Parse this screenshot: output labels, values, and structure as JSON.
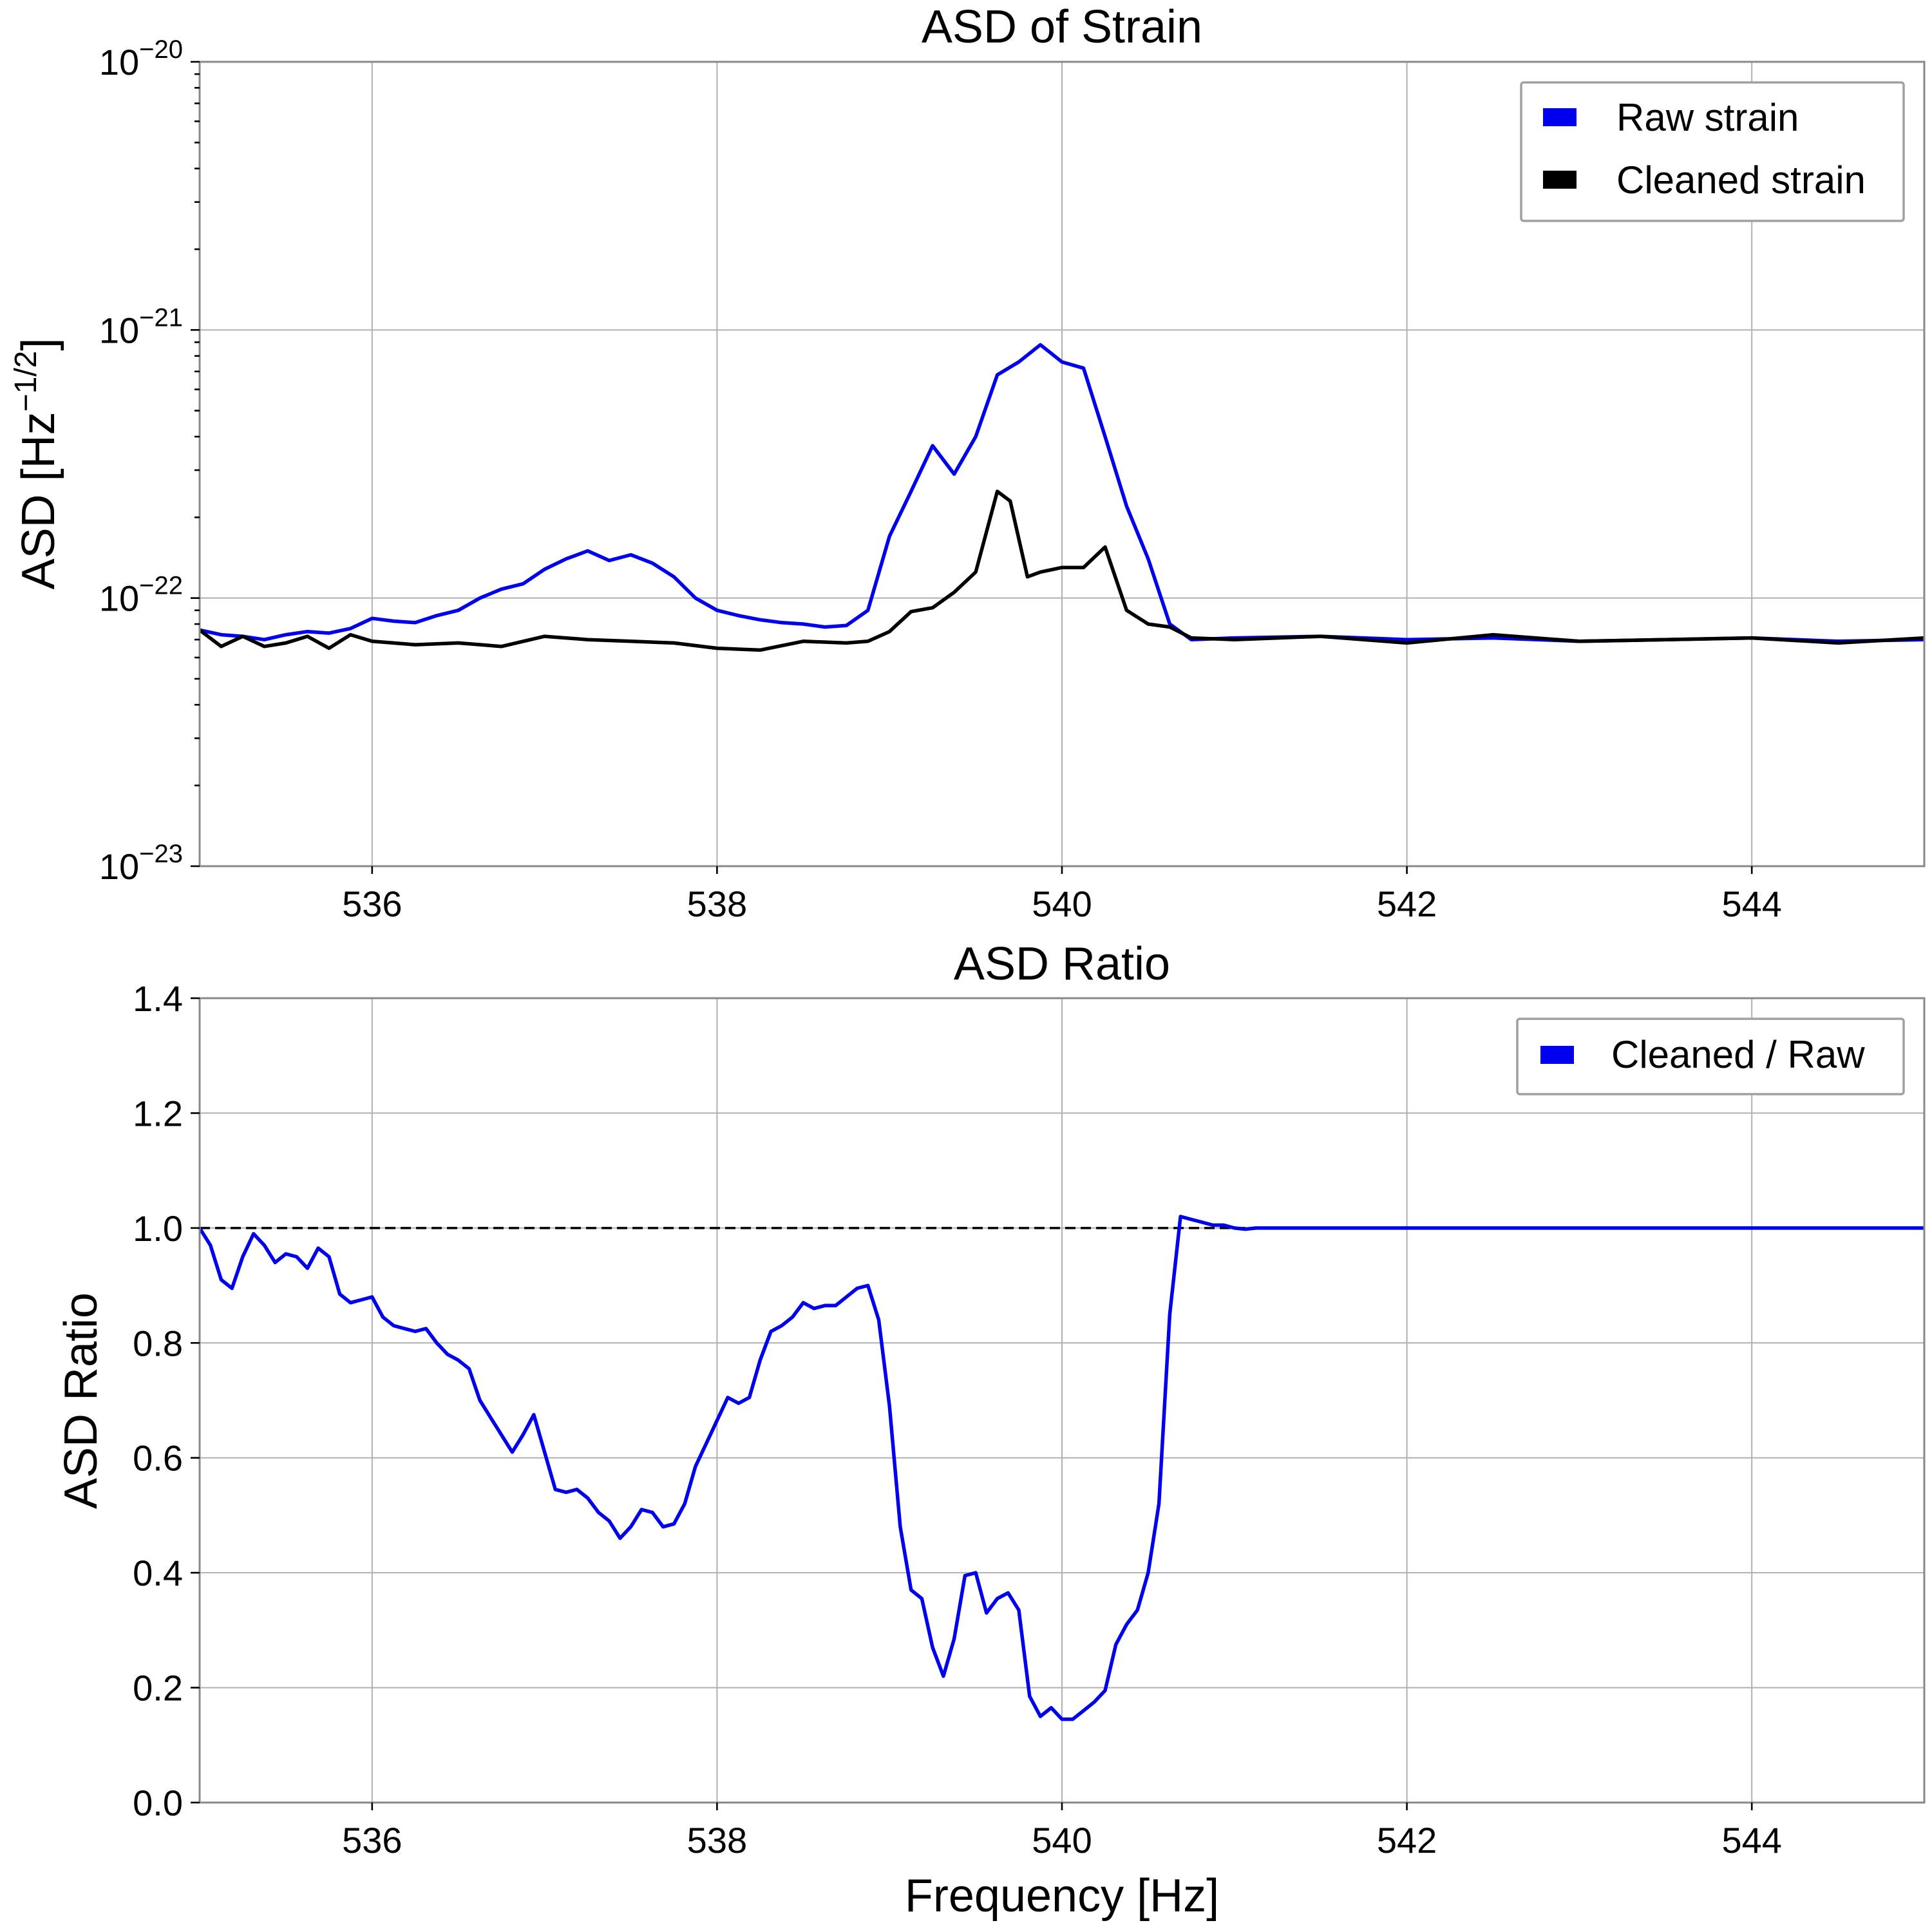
{
  "colors": {
    "raw": "#0000ee",
    "cleaned": "#000000",
    "ratio": "#0000ee",
    "reference": "#000000"
  },
  "chart_data": [
    {
      "type": "line",
      "title": "ASD of Strain",
      "xlabel": "",
      "ylabel": "ASD [Hz−1/2]",
      "yscale": "log",
      "xlim": [
        535,
        545
      ],
      "ylim": [
        1e-23,
        1e-20
      ],
      "xticks": [
        "536",
        "538",
        "540",
        "542",
        "544"
      ],
      "yticks": [
        {
          "base": "10",
          "exp": "−20"
        },
        {
          "base": "10",
          "exp": "−21"
        },
        {
          "base": "10",
          "exp": "−22"
        },
        {
          "base": "10",
          "exp": "−23"
        }
      ],
      "grid": true,
      "legend_placement": "top-right",
      "series": [
        {
          "name": "Raw strain",
          "x": [
            535.0,
            535.125,
            535.25,
            535.375,
            535.5,
            535.625,
            535.75,
            535.875,
            536.0,
            536.125,
            536.25,
            536.375,
            536.5,
            536.625,
            536.75,
            536.875,
            537.0,
            537.125,
            537.25,
            537.375,
            537.5,
            537.625,
            537.75,
            537.875,
            538.0,
            538.125,
            538.25,
            538.375,
            538.5,
            538.625,
            538.75,
            538.875,
            539.0,
            539.125,
            539.25,
            539.375,
            539.5,
            539.625,
            539.75,
            539.875,
            540.0,
            540.125,
            540.25,
            540.375,
            540.5,
            540.625,
            540.75,
            541.0,
            541.5,
            542.0,
            542.5,
            543.0,
            543.5,
            544.0,
            544.5,
            545.0
          ],
          "y": [
            7.6e-23,
            7.3e-23,
            7.2e-23,
            7e-23,
            7.3e-23,
            7.5e-23,
            7.4e-23,
            7.7e-23,
            8.4e-23,
            8.2e-23,
            8.1e-23,
            8.6e-23,
            9e-23,
            1e-22,
            1.08e-22,
            1.13e-22,
            1.28e-22,
            1.4e-22,
            1.5e-22,
            1.38e-22,
            1.45e-22,
            1.35e-22,
            1.2e-22,
            1e-22,
            9e-23,
            8.6e-23,
            8.3e-23,
            8.1e-23,
            8e-23,
            7.8e-23,
            7.9e-23,
            9e-23,
            1.7e-22,
            2.5e-22,
            3.7e-22,
            2.9e-22,
            4e-22,
            6.8e-22,
            7.6e-22,
            8.8e-22,
            7.6e-22,
            7.2e-22,
            4e-22,
            2.2e-22,
            1.4e-22,
            8e-23,
            7e-23,
            7.1e-23,
            7.2e-23,
            7e-23,
            7.1e-23,
            6.9e-23,
            7e-23,
            7.1e-23,
            6.9e-23,
            7e-23
          ]
        },
        {
          "name": "Cleaned strain",
          "x": [
            535.0,
            535.125,
            535.25,
            535.375,
            535.5,
            535.625,
            535.75,
            535.875,
            536.0,
            536.25,
            536.5,
            536.75,
            537.0,
            537.25,
            537.5,
            537.75,
            538.0,
            538.25,
            538.5,
            538.75,
            538.875,
            539.0,
            539.125,
            539.25,
            539.375,
            539.5,
            539.625,
            539.7,
            539.8,
            539.875,
            540.0,
            540.125,
            540.25,
            540.375,
            540.5,
            540.625,
            540.75,
            541.0,
            541.5,
            542.0,
            542.5,
            543.0,
            543.5,
            544.0,
            544.5,
            545.0
          ],
          "y": [
            7.6e-23,
            6.6e-23,
            7.2e-23,
            6.6e-23,
            6.8e-23,
            7.2e-23,
            6.5e-23,
            7.3e-23,
            6.9e-23,
            6.7e-23,
            6.8e-23,
            6.6e-23,
            7.2e-23,
            7e-23,
            6.9e-23,
            6.8e-23,
            6.5e-23,
            6.4e-23,
            6.9e-23,
            6.8e-23,
            6.9e-23,
            7.5e-23,
            8.9e-23,
            9.2e-23,
            1.05e-22,
            1.25e-22,
            2.5e-22,
            2.3e-22,
            1.2e-22,
            1.25e-22,
            1.3e-22,
            1.3e-22,
            1.55e-22,
            9e-23,
            8e-23,
            7.8e-23,
            7.1e-23,
            7e-23,
            7.2e-23,
            6.8e-23,
            7.3e-23,
            6.9e-23,
            7e-23,
            7.1e-23,
            6.8e-23,
            7.1e-23
          ]
        }
      ]
    },
    {
      "type": "line",
      "title": "ASD Ratio",
      "xlabel": "Frequency [Hz]",
      "ylabel": "ASD Ratio",
      "xlim": [
        535,
        545
      ],
      "ylim": [
        0.0,
        1.4
      ],
      "xticks": [
        "536",
        "538",
        "540",
        "542",
        "544"
      ],
      "yticks": [
        "0.0",
        "0.2",
        "0.4",
        "0.6",
        "0.8",
        "1.0",
        "1.2",
        "1.4"
      ],
      "grid": true,
      "legend_placement": "top-right",
      "reference_line": 1.0,
      "series": [
        {
          "name": "Cleaned / Raw",
          "x": [
            535.0,
            535.0625,
            535.125,
            535.1875,
            535.25,
            535.3125,
            535.375,
            535.4375,
            535.5,
            535.5625,
            535.625,
            535.6875,
            535.75,
            535.8125,
            535.875,
            535.9375,
            536.0,
            536.0625,
            536.125,
            536.1875,
            536.25,
            536.3125,
            536.375,
            536.4375,
            536.5,
            536.5625,
            536.625,
            536.6875,
            536.75,
            536.8125,
            536.875,
            536.9375,
            537.0,
            537.0625,
            537.125,
            537.1875,
            537.25,
            537.3125,
            537.375,
            537.4375,
            537.5,
            537.5625,
            537.625,
            537.6875,
            537.75,
            537.8125,
            537.875,
            537.9375,
            538.0,
            538.0625,
            538.125,
            538.1875,
            538.25,
            538.3125,
            538.375,
            538.4375,
            538.5,
            538.5625,
            538.625,
            538.6875,
            538.75,
            538.8125,
            538.875,
            538.9375,
            539.0,
            539.0625,
            539.125,
            539.1875,
            539.25,
            539.3125,
            539.375,
            539.4375,
            539.5,
            539.5625,
            539.625,
            539.6875,
            539.75,
            539.8125,
            539.875,
            539.9375,
            540.0,
            540.0625,
            540.125,
            540.1875,
            540.25,
            540.3125,
            540.375,
            540.4375,
            540.5,
            540.5625,
            540.625,
            540.6875,
            540.75,
            540.8125,
            540.875,
            540.9375,
            541.0,
            541.0625,
            541.125,
            541.25,
            541.5,
            542.0,
            542.5,
            543.0,
            543.5,
            544.0,
            544.5,
            545.0
          ],
          "y": [
            1.0,
            0.97,
            0.91,
            0.895,
            0.95,
            0.99,
            0.97,
            0.94,
            0.955,
            0.95,
            0.93,
            0.965,
            0.95,
            0.885,
            0.87,
            0.875,
            0.88,
            0.845,
            0.83,
            0.825,
            0.82,
            0.825,
            0.8,
            0.78,
            0.77,
            0.755,
            0.7,
            0.67,
            0.64,
            0.61,
            0.64,
            0.675,
            0.61,
            0.545,
            0.54,
            0.545,
            0.53,
            0.505,
            0.49,
            0.46,
            0.48,
            0.51,
            0.505,
            0.48,
            0.485,
            0.52,
            0.585,
            0.625,
            0.665,
            0.705,
            0.695,
            0.705,
            0.77,
            0.82,
            0.83,
            0.845,
            0.87,
            0.86,
            0.865,
            0.865,
            0.88,
            0.895,
            0.9,
            0.84,
            0.69,
            0.48,
            0.37,
            0.355,
            0.27,
            0.22,
            0.285,
            0.395,
            0.4,
            0.33,
            0.355,
            0.365,
            0.335,
            0.185,
            0.15,
            0.165,
            0.145,
            0.145,
            0.16,
            0.175,
            0.195,
            0.275,
            0.31,
            0.335,
            0.4,
            0.52,
            0.85,
            1.02,
            1.015,
            1.01,
            1.005,
            1.005,
            1.0,
            0.998,
            1.0,
            1.0,
            1.0,
            1.0,
            1.0,
            1.0,
            1.0,
            1.0,
            1.0,
            1.0
          ]
        }
      ]
    }
  ]
}
